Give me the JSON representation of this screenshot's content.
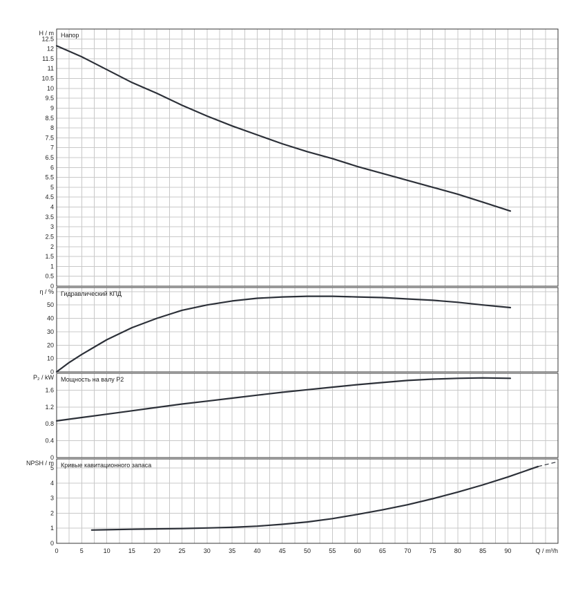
{
  "chart_data": [
    {
      "type": "line",
      "title": "Напор",
      "ylabel": "H / m",
      "ylim": [
        0,
        13
      ],
      "yticks": [
        0,
        0.5,
        1,
        1.5,
        2,
        2.5,
        3,
        3.5,
        4,
        4.5,
        5,
        5.5,
        6,
        6.5,
        7,
        7.5,
        8,
        8.5,
        9,
        9.5,
        10,
        10.5,
        11,
        11.5,
        12,
        12.5
      ],
      "xlim": [
        0,
        100
      ],
      "grid": true,
      "series": [
        {
          "x": [
            0,
            5,
            10,
            15,
            20,
            25,
            30,
            35,
            40,
            45,
            50,
            55,
            60,
            65,
            70,
            75,
            80,
            85,
            90.5
          ],
          "y": [
            12.15,
            11.6,
            10.95,
            10.3,
            9.75,
            9.15,
            8.6,
            8.1,
            7.65,
            7.2,
            6.8,
            6.45,
            6.05,
            5.7,
            5.35,
            5.0,
            4.65,
            4.25,
            3.8
          ]
        }
      ]
    },
    {
      "type": "line",
      "title": "Гидравлический КПД",
      "ylabel": "η / %",
      "ylim": [
        0,
        63
      ],
      "yticks": [
        0,
        10,
        20,
        30,
        40,
        50
      ],
      "xlim": [
        0,
        100
      ],
      "grid": true,
      "series": [
        {
          "x": [
            0,
            2.5,
            5,
            10,
            15,
            20,
            25,
            30,
            35,
            40,
            45,
            50,
            55,
            60,
            65,
            70,
            75,
            80,
            85,
            90.5
          ],
          "y": [
            0,
            7,
            13,
            24,
            33,
            40,
            46,
            50,
            53,
            55,
            56,
            56.5,
            56.5,
            56,
            55.5,
            54.5,
            53.5,
            52,
            50,
            48
          ]
        }
      ]
    },
    {
      "type": "line",
      "title": "Мощность на валу P2",
      "ylabel": "P₂ / kW",
      "ylim": [
        0,
        2.0
      ],
      "yticks": [
        0,
        0.4,
        0.8,
        1.2,
        1.6
      ],
      "xlim": [
        0,
        100
      ],
      "grid": true,
      "series": [
        {
          "x": [
            0,
            5,
            10,
            15,
            20,
            25,
            30,
            35,
            40,
            45,
            50,
            55,
            60,
            65,
            70,
            75,
            80,
            85,
            90.5
          ],
          "y": [
            0.87,
            0.95,
            1.03,
            1.11,
            1.19,
            1.27,
            1.34,
            1.41,
            1.48,
            1.55,
            1.61,
            1.67,
            1.73,
            1.78,
            1.83,
            1.86,
            1.88,
            1.89,
            1.88
          ]
        }
      ]
    },
    {
      "type": "line",
      "title": "Кривые кавитационного запаса",
      "ylabel": "NPSH / m",
      "ylim": [
        0,
        5.6
      ],
      "yticks": [
        0,
        1,
        2,
        3,
        4,
        5
      ],
      "xlim": [
        0,
        100
      ],
      "xlabel": "Q / m³/h",
      "xticks": [
        0,
        5,
        10,
        15,
        20,
        25,
        30,
        35,
        40,
        45,
        50,
        55,
        60,
        65,
        70,
        75,
        80,
        85,
        90
      ],
      "grid": true,
      "series": [
        {
          "x": [
            7,
            10,
            15,
            20,
            25,
            30,
            35,
            40,
            45,
            50,
            55,
            60,
            65,
            70,
            75,
            80,
            85,
            90,
            96
          ],
          "y": [
            0.88,
            0.9,
            0.93,
            0.96,
            0.98,
            1.02,
            1.06,
            1.14,
            1.26,
            1.42,
            1.64,
            1.92,
            2.22,
            2.56,
            2.96,
            3.4,
            3.88,
            4.4,
            5.1
          ]
        },
        {
          "x": [
            96,
            100
          ],
          "y": [
            5.1,
            5.42
          ],
          "style": "dashed"
        }
      ]
    }
  ]
}
